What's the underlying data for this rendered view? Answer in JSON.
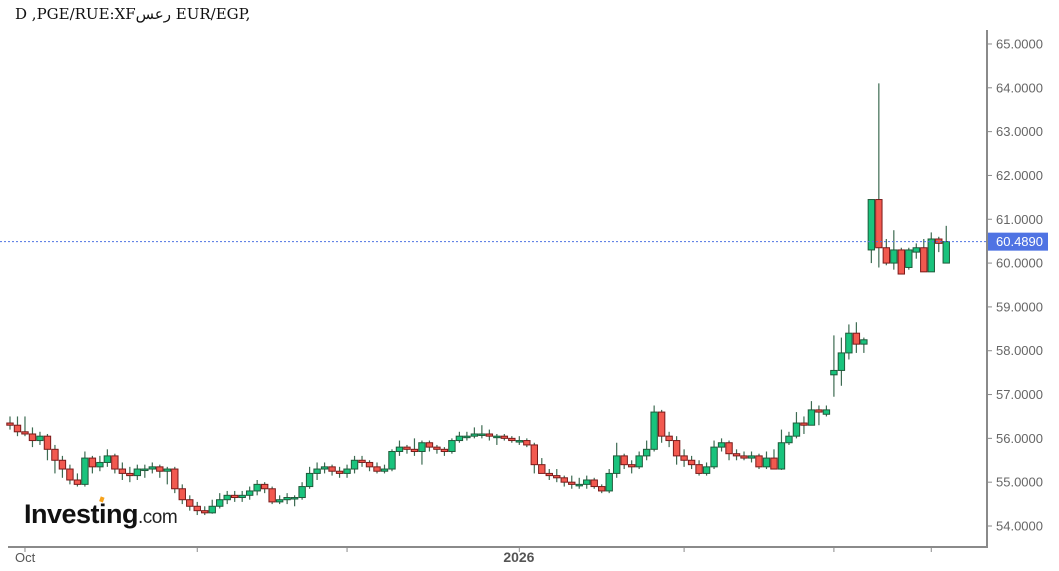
{
  "chart_data": {
    "type": "candlestick",
    "title": "D ,PGE/RUE:XFسعر EUR/EGP,",
    "symbol": "EUR/EGP",
    "interval": "D",
    "ylim": [
      53.7,
      65.3
    ],
    "yticks": [
      "54.0000",
      "55.0000",
      "56.0000",
      "57.0000",
      "58.0000",
      "59.0000",
      "60.0000",
      "61.0000",
      "62.0000",
      "63.0000",
      "64.0000",
      "65.0000"
    ],
    "xticks": [
      {
        "index": 2,
        "label": "Oct",
        "bold": false
      },
      {
        "index": 25,
        "label": "",
        "bold": false
      },
      {
        "index": 45,
        "label": "",
        "bold": false
      },
      {
        "index": 68,
        "label": "2026",
        "bold": true
      },
      {
        "index": 90,
        "label": "",
        "bold": false
      },
      {
        "index": 110,
        "label": "",
        "bold": false
      },
      {
        "index": 123,
        "label": "",
        "bold": false
      }
    ],
    "last_price": 60.489,
    "last_price_label": "60.4890",
    "grid": false,
    "colors": {
      "up": "#19c37d",
      "up_edge": "#1f5a3a",
      "down": "#f2594f",
      "down_edge": "#7a1a1a",
      "wick": "#3d6b52",
      "price_tag": "#4f73e3"
    },
    "candles_ohlc": [
      [
        56.35,
        56.5,
        56.2,
        56.3
      ],
      [
        56.3,
        56.5,
        56.05,
        56.15
      ],
      [
        56.15,
        56.5,
        56.05,
        56.1
      ],
      [
        56.1,
        56.25,
        55.8,
        55.95
      ],
      [
        55.95,
        56.15,
        55.85,
        56.05
      ],
      [
        56.05,
        56.1,
        55.5,
        55.75
      ],
      [
        55.75,
        55.85,
        55.2,
        55.5
      ],
      [
        55.5,
        55.6,
        55.1,
        55.3
      ],
      [
        55.3,
        55.4,
        54.95,
        55.05
      ],
      [
        55.05,
        55.2,
        54.9,
        54.95
      ],
      [
        54.95,
        55.7,
        54.9,
        55.55
      ],
      [
        55.55,
        55.6,
        55.2,
        55.35
      ],
      [
        55.35,
        55.6,
        55.25,
        55.45
      ],
      [
        55.45,
        55.75,
        55.35,
        55.6
      ],
      [
        55.6,
        55.65,
        55.2,
        55.3
      ],
      [
        55.3,
        55.45,
        55.05,
        55.2
      ],
      [
        55.2,
        55.35,
        55.0,
        55.15
      ],
      [
        55.15,
        55.4,
        55.05,
        55.3
      ],
      [
        55.3,
        55.4,
        55.1,
        55.3
      ],
      [
        55.3,
        55.45,
        55.2,
        55.35
      ],
      [
        55.35,
        55.4,
        55.1,
        55.25
      ],
      [
        55.25,
        55.35,
        54.95,
        55.3
      ],
      [
        55.3,
        55.35,
        54.75,
        54.85
      ],
      [
        54.85,
        54.95,
        54.5,
        54.6
      ],
      [
        54.6,
        54.7,
        54.35,
        54.45
      ],
      [
        54.45,
        54.55,
        54.25,
        54.35
      ],
      [
        54.35,
        54.45,
        54.25,
        54.3
      ],
      [
        54.3,
        54.6,
        54.28,
        54.45
      ],
      [
        54.45,
        54.75,
        54.4,
        54.6
      ],
      [
        54.6,
        54.8,
        54.5,
        54.7
      ],
      [
        54.7,
        54.8,
        54.55,
        54.65
      ],
      [
        54.65,
        54.8,
        54.55,
        54.7
      ],
      [
        54.7,
        54.9,
        54.6,
        54.8
      ],
      [
        54.8,
        55.05,
        54.7,
        54.95
      ],
      [
        54.95,
        55.0,
        54.75,
        54.85
      ],
      [
        54.85,
        54.9,
        54.5,
        54.55
      ],
      [
        54.55,
        54.7,
        54.5,
        54.6
      ],
      [
        54.6,
        54.75,
        54.5,
        54.65
      ],
      [
        54.65,
        54.7,
        54.45,
        54.65
      ],
      [
        54.65,
        55.0,
        54.6,
        54.9
      ],
      [
        54.9,
        55.35,
        54.85,
        55.2
      ],
      [
        55.2,
        55.45,
        55.05,
        55.3
      ],
      [
        55.3,
        55.45,
        55.2,
        55.35
      ],
      [
        55.35,
        55.4,
        55.15,
        55.25
      ],
      [
        55.25,
        55.35,
        55.1,
        55.2
      ],
      [
        55.2,
        55.4,
        55.1,
        55.3
      ],
      [
        55.3,
        55.6,
        55.2,
        55.5
      ],
      [
        55.5,
        55.6,
        55.35,
        55.45
      ],
      [
        55.45,
        55.5,
        55.25,
        55.35
      ],
      [
        55.35,
        55.45,
        55.2,
        55.25
      ],
      [
        55.25,
        55.4,
        55.2,
        55.3
      ],
      [
        55.3,
        55.75,
        55.25,
        55.7
      ],
      [
        55.7,
        55.95,
        55.6,
        55.8
      ],
      [
        55.8,
        55.85,
        55.65,
        55.75
      ],
      [
        55.75,
        56.0,
        55.6,
        55.7
      ],
      [
        55.7,
        55.95,
        55.4,
        55.9
      ],
      [
        55.9,
        55.95,
        55.7,
        55.8
      ],
      [
        55.8,
        55.85,
        55.65,
        55.75
      ],
      [
        55.75,
        55.8,
        55.6,
        55.7
      ],
      [
        55.7,
        56.0,
        55.65,
        55.95
      ],
      [
        55.95,
        56.15,
        55.9,
        56.05
      ],
      [
        56.05,
        56.15,
        55.95,
        56.05
      ],
      [
        56.05,
        56.25,
        56.0,
        56.1
      ],
      [
        56.1,
        56.3,
        56.0,
        56.1
      ],
      [
        56.1,
        56.2,
        55.95,
        56.05
      ],
      [
        56.05,
        56.1,
        55.85,
        56.05
      ],
      [
        56.05,
        56.1,
        55.95,
        56.0
      ],
      [
        56.0,
        56.05,
        55.9,
        55.95
      ],
      [
        55.95,
        56.05,
        55.85,
        55.95
      ],
      [
        55.95,
        56.0,
        55.8,
        55.85
      ],
      [
        55.85,
        55.9,
        55.2,
        55.4
      ],
      [
        55.4,
        55.55,
        55.2,
        55.2
      ],
      [
        55.2,
        55.3,
        55.05,
        55.15
      ],
      [
        55.15,
        55.3,
        55.0,
        55.1
      ],
      [
        55.1,
        55.15,
        54.9,
        55.0
      ],
      [
        55.0,
        55.15,
        54.85,
        54.95
      ],
      [
        54.95,
        55.1,
        54.85,
        54.95
      ],
      [
        54.95,
        55.15,
        54.85,
        55.05
      ],
      [
        55.05,
        55.1,
        54.85,
        54.9
      ],
      [
        54.9,
        54.95,
        54.75,
        54.8
      ],
      [
        54.8,
        55.3,
        54.75,
        55.2
      ],
      [
        55.2,
        55.9,
        55.1,
        55.6
      ],
      [
        55.6,
        55.65,
        55.3,
        55.4
      ],
      [
        55.4,
        55.5,
        55.2,
        55.35
      ],
      [
        55.35,
        55.7,
        55.3,
        55.6
      ],
      [
        55.6,
        55.95,
        55.5,
        55.75
      ],
      [
        55.75,
        56.75,
        55.7,
        56.6
      ],
      [
        56.6,
        56.65,
        55.9,
        56.05
      ],
      [
        56.05,
        56.15,
        55.8,
        55.95
      ],
      [
        55.95,
        56.05,
        55.4,
        55.6
      ],
      [
        55.6,
        55.75,
        55.35,
        55.5
      ],
      [
        55.5,
        55.6,
        55.3,
        55.4
      ],
      [
        55.4,
        55.5,
        55.15,
        55.2
      ],
      [
        55.2,
        55.45,
        55.15,
        55.35
      ],
      [
        55.35,
        55.95,
        55.3,
        55.8
      ],
      [
        55.8,
        56.0,
        55.7,
        55.9
      ],
      [
        55.9,
        55.95,
        55.5,
        55.65
      ],
      [
        55.65,
        55.75,
        55.5,
        55.6
      ],
      [
        55.6,
        55.7,
        55.5,
        55.55
      ],
      [
        55.55,
        55.7,
        55.45,
        55.6
      ],
      [
        55.6,
        55.65,
        55.3,
        55.35
      ],
      [
        55.35,
        55.7,
        55.3,
        55.55
      ],
      [
        55.55,
        55.75,
        55.3,
        55.3
      ],
      [
        55.3,
        56.2,
        55.28,
        55.9
      ],
      [
        55.9,
        56.15,
        55.85,
        56.05
      ],
      [
        56.05,
        56.6,
        56.0,
        56.35
      ],
      [
        56.35,
        56.5,
        56.1,
        56.3
      ],
      [
        56.3,
        56.85,
        56.3,
        56.65
      ],
      [
        56.65,
        56.75,
        56.3,
        56.6
      ],
      [
        56.55,
        56.75,
        56.5,
        56.65
      ],
      [
        57.45,
        58.35,
        56.95,
        57.55
      ],
      [
        57.55,
        58.3,
        57.2,
        57.95
      ],
      [
        57.95,
        58.6,
        57.8,
        58.4
      ],
      [
        58.4,
        58.65,
        57.95,
        58.15
      ],
      [
        58.15,
        58.3,
        57.95,
        58.25
      ],
      [
        60.3,
        61.45,
        60.0,
        61.45
      ],
      [
        61.45,
        64.1,
        59.9,
        60.35
      ],
      [
        60.35,
        60.55,
        59.95,
        60.0
      ],
      [
        60.0,
        60.75,
        59.85,
        60.3
      ],
      [
        60.3,
        60.35,
        59.75,
        59.75
      ],
      [
        59.9,
        60.35,
        59.85,
        60.3
      ],
      [
        60.25,
        60.45,
        60.1,
        60.35
      ],
      [
        60.35,
        60.55,
        59.8,
        59.8
      ],
      [
        59.8,
        60.7,
        59.8,
        60.55
      ],
      [
        60.55,
        60.6,
        60.25,
        60.45
      ],
      [
        60.0,
        60.85,
        60.0,
        60.49
      ]
    ]
  },
  "logo": {
    "brand": "Investing",
    "suffix": ".com"
  }
}
